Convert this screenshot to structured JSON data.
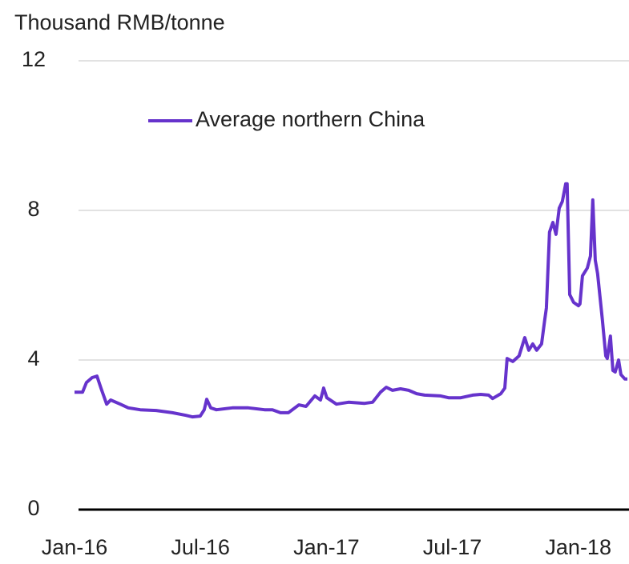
{
  "chart_data": {
    "type": "line",
    "y_axis_label": "Thousand RMB/tonne",
    "xlim": [
      0,
      26.34
    ],
    "xticks": [
      {
        "value": 0,
        "label": "Jan-16"
      },
      {
        "value": 6,
        "label": "Jul-16"
      },
      {
        "value": 12,
        "label": "Jan-17"
      },
      {
        "value": 18,
        "label": "Jul-17"
      },
      {
        "value": 24,
        "label": "Jan-18"
      }
    ],
    "ylim": [
      0,
      12
    ],
    "yticks": [
      0,
      4,
      8,
      12
    ],
    "grid": true,
    "legend": "top",
    "x": [
      0.0,
      0.38,
      0.57,
      0.84,
      1.07,
      1.26,
      1.53,
      1.72,
      2.18,
      2.56,
      3.13,
      3.89,
      4.66,
      5.31,
      5.61,
      5.99,
      6.18,
      6.3,
      6.49,
      6.76,
      7.52,
      8.28,
      9.05,
      9.43,
      9.81,
      10.19,
      10.69,
      11.03,
      11.45,
      11.72,
      11.87,
      12.02,
      12.48,
      13.05,
      13.82,
      14.2,
      14.58,
      14.85,
      15.15,
      15.53,
      15.92,
      16.3,
      16.68,
      17.44,
      17.82,
      18.4,
      18.97,
      19.35,
      19.73,
      19.92,
      20.31,
      20.5,
      20.61,
      20.88,
      21.18,
      21.45,
      21.64,
      21.83,
      22.02,
      22.25,
      22.4,
      22.48,
      22.63,
      22.79,
      22.94,
      23.09,
      23.24,
      23.4,
      23.47,
      23.59,
      23.78,
      24.01,
      24.08,
      24.2,
      24.43,
      24.58,
      24.69,
      24.81,
      24.92,
      25.15,
      25.31,
      25.38,
      25.53,
      25.65,
      25.76,
      25.92,
      26.03,
      26.22,
      26.34
    ],
    "series": [
      {
        "name": "Average northern China",
        "color": "#6633cc",
        "values": [
          3.14,
          3.14,
          3.4,
          3.53,
          3.57,
          3.25,
          2.82,
          2.93,
          2.82,
          2.72,
          2.67,
          2.65,
          2.59,
          2.52,
          2.48,
          2.5,
          2.67,
          2.95,
          2.72,
          2.67,
          2.72,
          2.72,
          2.67,
          2.67,
          2.59,
          2.59,
          2.8,
          2.76,
          3.04,
          2.93,
          3.25,
          2.99,
          2.82,
          2.87,
          2.84,
          2.87,
          3.14,
          3.27,
          3.19,
          3.23,
          3.19,
          3.1,
          3.06,
          3.04,
          2.99,
          2.99,
          3.06,
          3.08,
          3.06,
          2.97,
          3.1,
          3.25,
          4.04,
          3.96,
          4.11,
          4.6,
          4.26,
          4.43,
          4.26,
          4.43,
          5.07,
          5.39,
          7.42,
          7.68,
          7.36,
          8.06,
          8.24,
          8.71,
          8.71,
          5.75,
          5.54,
          5.45,
          5.5,
          6.25,
          6.46,
          6.78,
          8.28,
          6.67,
          6.31,
          5.07,
          4.11,
          4.04,
          4.64,
          3.72,
          3.68,
          4.0,
          3.61,
          3.49,
          3.49
        ]
      }
    ]
  }
}
